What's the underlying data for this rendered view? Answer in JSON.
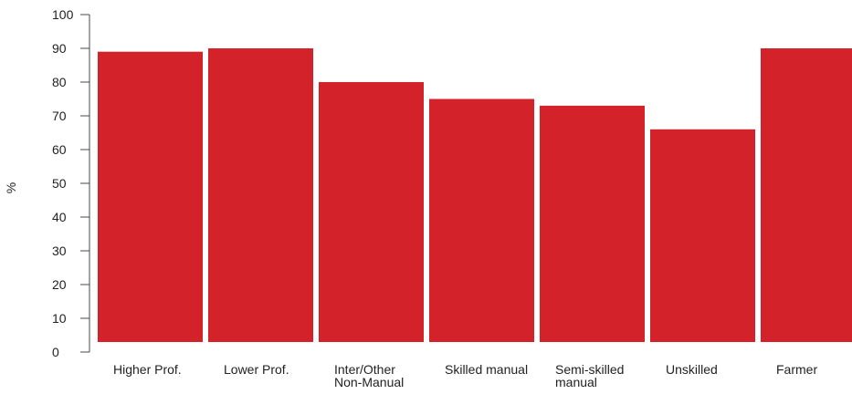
{
  "chart_data": {
    "type": "bar",
    "categories": [
      [
        "Higher Prof."
      ],
      [
        "Lower Prof."
      ],
      [
        "Inter/Other",
        "Non-Manual"
      ],
      [
        "Skilled manual"
      ],
      [
        "Semi-skilled",
        "manual"
      ],
      [
        "Unskilled"
      ],
      [
        "Farmer"
      ]
    ],
    "values": [
      89,
      90,
      80,
      75,
      73,
      66,
      90
    ],
    "ylabel": "%",
    "ylim": [
      0,
      100
    ],
    "yticks": [
      0,
      10,
      20,
      30,
      40,
      50,
      60,
      70,
      80,
      90,
      100
    ],
    "bar_color": "#d3222a",
    "grid": false,
    "legend": "none"
  }
}
